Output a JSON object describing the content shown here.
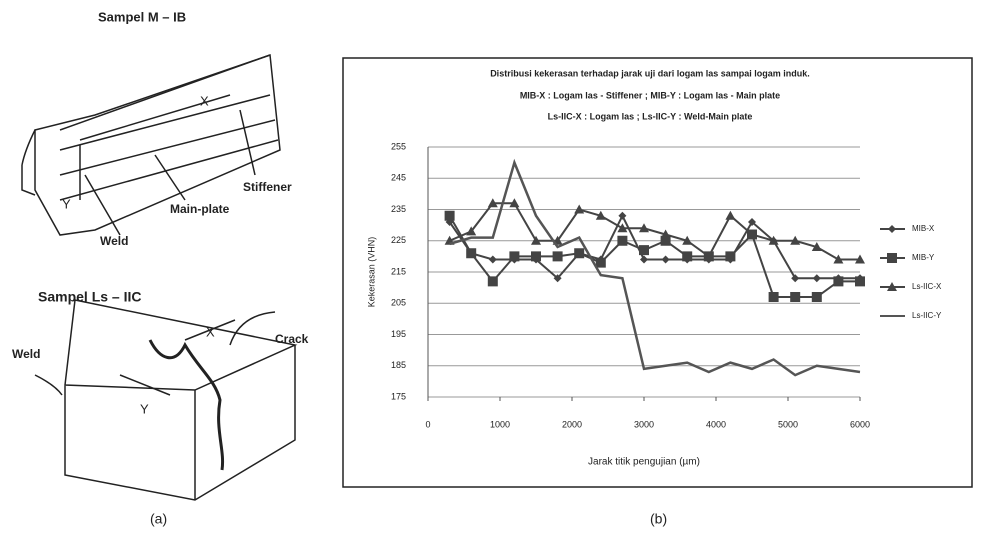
{
  "figure_a": {
    "sample1_title": "Sampel M – IB",
    "sample1_x": "X",
    "sample1_y": "Y",
    "weld1": "Weld",
    "main_plate": "Main-plate",
    "stiffener": "Stiffener",
    "sample2_title": "Sampel Ls – IIC",
    "crack": "Crack",
    "weld2": "Weld",
    "sample2_x": "X",
    "sample2_y": "Y",
    "panel_label": "(a)"
  },
  "panel_b_label": "(b)",
  "chart_data": {
    "type": "line",
    "title": "Distribusi kekerasan terhadap jarak uji dari logam las sampai logam induk.",
    "subtitle": [
      "MIB-X : Logam las - Stiffener ; MIB-Y : Logam las - Main plate",
      "Ls-IIC-X : Logam las  ;  Ls-IIC-Y : Weld-Main plate"
    ],
    "x_label": "Jarak titik pengujian (µm)",
    "y_label": "Kekerasan (VHN)",
    "x": [
      300,
      600,
      900,
      1200,
      1500,
      1800,
      2100,
      2400,
      2700,
      3000,
      3300,
      3600,
      3900,
      4200,
      4500,
      4800,
      5100,
      5400,
      5700,
      6000
    ],
    "series": [
      {
        "name": "MIB-X",
        "color": "#444444",
        "marker": "diamond",
        "values": [
          231,
          221,
          219,
          219,
          219,
          213,
          221,
          219,
          233,
          219,
          219,
          219,
          219,
          219,
          231,
          225,
          213,
          213,
          213,
          213
        ]
      },
      {
        "name": "MIB-Y",
        "color": "#444444",
        "marker": "square",
        "values": [
          233,
          221,
          212,
          220,
          220,
          220,
          221,
          218,
          225,
          222,
          225,
          220,
          220,
          220,
          227,
          207,
          207,
          207,
          212,
          212
        ]
      },
      {
        "name": "Ls-IIC-X",
        "color": "#444444",
        "marker": "triangle",
        "values": [
          225,
          228,
          237,
          237,
          225,
          225,
          235,
          233,
          229,
          229,
          227,
          225,
          220,
          233,
          227,
          225,
          225,
          223,
          219,
          219
        ]
      },
      {
        "name": "Ls-IIC-Y",
        "color": "#555555",
        "marker": "none",
        "values": [
          224,
          226,
          226,
          250,
          233,
          223,
          226,
          214,
          213,
          184,
          185,
          186,
          183,
          186,
          184,
          187,
          182,
          185,
          184,
          183
        ]
      }
    ],
    "xlim": [
      0,
      6000
    ],
    "xticks": [
      0,
      1000,
      2000,
      3000,
      4000,
      5000,
      6000
    ],
    "ylim": [
      175,
      255
    ],
    "yticks": [
      175,
      185,
      195,
      205,
      215,
      225,
      235,
      245,
      255
    ],
    "grid": true,
    "legend": "right"
  }
}
